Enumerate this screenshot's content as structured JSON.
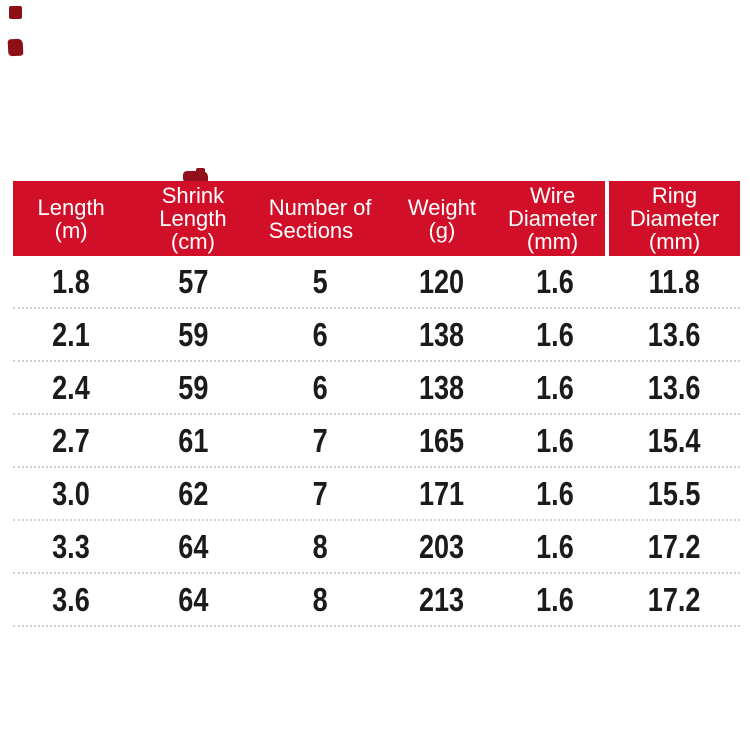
{
  "colors": {
    "header_bg": "#d20f28",
    "header_text": "#ffffff",
    "body_text": "#1b1b1d",
    "separator": "#d0d0d0",
    "watermark_red": "#8c1016"
  },
  "table": {
    "columns": [
      {
        "id": "length",
        "header": "Length\n(m)"
      },
      {
        "id": "shrink-length",
        "header": "Shrink\nLength\n(cm)"
      },
      {
        "id": "sections",
        "header": "Number of\nSections"
      },
      {
        "id": "weight",
        "header": "Weight\n(g)"
      },
      {
        "id": "wire-diameter",
        "header": "Wire\nDiameter\n(mm)"
      },
      {
        "id": "ring-diameter",
        "header": "Ring\nDiameter\n(mm)"
      }
    ],
    "rows": [
      [
        "1.8",
        "57",
        "5",
        "120",
        "1.6",
        "11.8"
      ],
      [
        "2.1",
        "59",
        "6",
        "138",
        "1.6",
        "13.6"
      ],
      [
        "2.4",
        "59",
        "6",
        "138",
        "1.6",
        "13.6"
      ],
      [
        "2.7",
        "61",
        "7",
        "165",
        "1.6",
        "15.4"
      ],
      [
        "3.0",
        "62",
        "7",
        "171",
        "1.6",
        "15.5"
      ],
      [
        "3.3",
        "64",
        "8",
        "203",
        "1.6",
        "17.2"
      ],
      [
        "3.6",
        "64",
        "8",
        "213",
        "1.6",
        "17.2"
      ]
    ]
  },
  "chart_data": {
    "type": "table",
    "title": "",
    "columns": [
      "Length (m)",
      "Shrink Length (cm)",
      "Number of Sections",
      "Weight (g)",
      "Wire Diameter (mm)",
      "Ring Diameter (mm)"
    ],
    "rows": [
      [
        1.8,
        57,
        5,
        120,
        1.6,
        11.8
      ],
      [
        2.1,
        59,
        6,
        138,
        1.6,
        13.6
      ],
      [
        2.4,
        59,
        6,
        138,
        1.6,
        13.6
      ],
      [
        2.7,
        61,
        7,
        165,
        1.6,
        15.4
      ],
      [
        3.0,
        62,
        7,
        171,
        1.6,
        15.5
      ],
      [
        3.3,
        64,
        8,
        203,
        1.6,
        17.2
      ],
      [
        3.6,
        64,
        8,
        213,
        1.6,
        17.2
      ]
    ],
    "layout": {
      "header_style": "red-bar",
      "row_separator": "dotted",
      "grid": false
    }
  }
}
